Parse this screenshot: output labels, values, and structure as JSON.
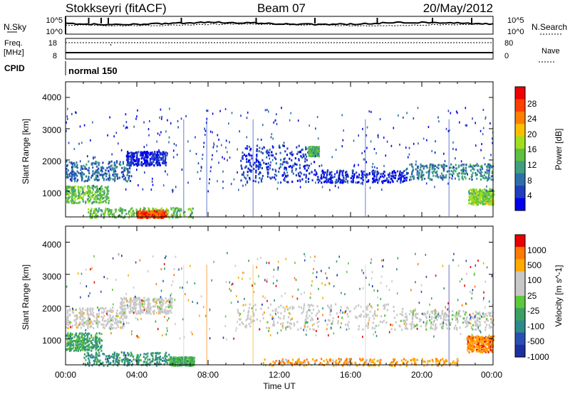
{
  "header": {
    "station": "Stokkseyri (fitACF)",
    "beam": "Beam 07",
    "date": "20/May/2012"
  },
  "top_panel": {
    "left_label": "N.Sky",
    "left_ticks": [
      "10^5",
      "10^0"
    ],
    "right_ticks": [
      "10^5",
      "10^0"
    ],
    "right_label": "N.Search"
  },
  "freq_panel": {
    "left_label_line1": "Freq.",
    "left_label_line2": "[MHz]",
    "left_ticks": [
      "18",
      "8"
    ],
    "right_ticks": [
      "80",
      "0"
    ],
    "right_label": "Nave"
  },
  "cpid_panel": {
    "label": "CPID",
    "value": "normal 150"
  },
  "time_axis": {
    "label": "Time UT",
    "ticks": [
      "00:00",
      "04:00",
      "08:00",
      "12:00",
      "16:00",
      "20:00",
      "00:00"
    ]
  },
  "colors": {
    "power_scale": [
      "#0000ee",
      "#1f3fbf",
      "#2f6fa8",
      "#3f9f7f",
      "#5fbf3f",
      "#9fdf1f",
      "#ffbf00",
      "#ff7f00",
      "#ff3f00",
      "#ee0000"
    ],
    "velocity_scale": [
      "#e60000",
      "#ff7a00",
      "#ffaa00",
      "#c8c8c8",
      "#c8c8c8",
      "#5cc83c",
      "#3aa064",
      "#2e8a8a",
      "#2a4fb4",
      "#1e2fa0"
    ],
    "ground_scatter": "#c8c8c8"
  },
  "chart_data": [
    {
      "type": "heatmap",
      "title": "",
      "xlabel": "",
      "ylabel": "Slant Range [km]",
      "xlim": [
        "00:00",
        "00:00"
      ],
      "ylim": [
        180,
        4500
      ],
      "yticks": [
        "1000",
        "2000",
        "3000",
        "4000"
      ],
      "colorbar": {
        "label": "Power [dB]",
        "range": [
          0,
          32
        ],
        "ticks": [
          "4",
          "8",
          "12",
          "16",
          "20",
          "24",
          "28"
        ]
      },
      "features": [
        {
          "x_hours": [
            0.0,
            3.6
          ],
          "y_km": [
            1350,
            2000
          ],
          "level": 0.25
        },
        {
          "x_hours": [
            3.4,
            5.6
          ],
          "y_km": [
            1850,
            2300
          ],
          "level": 0.1
        },
        {
          "x_hours": [
            0.0,
            2.4
          ],
          "y_km": [
            650,
            1200
          ],
          "level": 0.45
        },
        {
          "x_hours": [
            1.2,
            7.2
          ],
          "y_km": [
            180,
            500
          ],
          "level": 0.45
        },
        {
          "x_hours": [
            4.0,
            5.6
          ],
          "y_km": [
            180,
            400
          ],
          "level": 0.85
        },
        {
          "x_hours": [
            9.8,
            14.0
          ],
          "y_km": [
            1300,
            2500
          ],
          "level": 0.15
        },
        {
          "x_hours": [
            13.6,
            14.2
          ],
          "y_km": [
            2150,
            2450
          ],
          "level": 0.4
        },
        {
          "x_hours": [
            14.0,
            19.2
          ],
          "y_km": [
            1300,
            1700
          ],
          "level": 0.1
        },
        {
          "x_hours": [
            19.0,
            24.0
          ],
          "y_km": [
            1400,
            1900
          ],
          "level": 0.3
        },
        {
          "x_hours": [
            22.6,
            24.0
          ],
          "y_km": [
            600,
            1100
          ],
          "level": 0.5
        }
      ]
    },
    {
      "type": "heatmap",
      "title": "",
      "xlabel": "Time UT",
      "ylabel": "Slant Range [km]",
      "xlim": [
        "00:00",
        "00:00"
      ],
      "ylim": [
        180,
        4500
      ],
      "yticks": [
        "1000",
        "2000",
        "3000",
        "4000"
      ],
      "colorbar": {
        "label": "Velocity [m s^-1]",
        "ticks": [
          "1000",
          "500",
          "100",
          "25",
          "-25",
          "-100",
          "-500",
          "-1000"
        ]
      },
      "features": [
        {
          "x_hours": [
            0.0,
            3.4
          ],
          "y_km": [
            1350,
            2000
          ],
          "level": 0.4
        },
        {
          "x_hours": [
            3.0,
            6.0
          ],
          "y_km": [
            1800,
            2300
          ],
          "level": 0.4
        },
        {
          "x_hours": [
            9.6,
            19.0
          ],
          "y_km": [
            1300,
            2100
          ],
          "level": 0.4
        },
        {
          "x_hours": [
            19.0,
            24.0
          ],
          "y_km": [
            1300,
            1900
          ],
          "level": 0.42
        },
        {
          "x_hours": [
            0.0,
            2.0
          ],
          "y_km": [
            650,
            1200
          ],
          "level": 0.65
        },
        {
          "x_hours": [
            1.0,
            5.8
          ],
          "y_km": [
            180,
            600
          ],
          "level": 0.7
        },
        {
          "x_hours": [
            5.8,
            7.2
          ],
          "y_km": [
            180,
            450
          ],
          "level": 0.62
        },
        {
          "x_hours": [
            11.0,
            22.0
          ],
          "y_km": [
            180,
            400
          ],
          "level": 0.22
        },
        {
          "x_hours": [
            22.5,
            24.0
          ],
          "y_km": [
            600,
            1100
          ],
          "level": 0.18
        }
      ]
    }
  ]
}
